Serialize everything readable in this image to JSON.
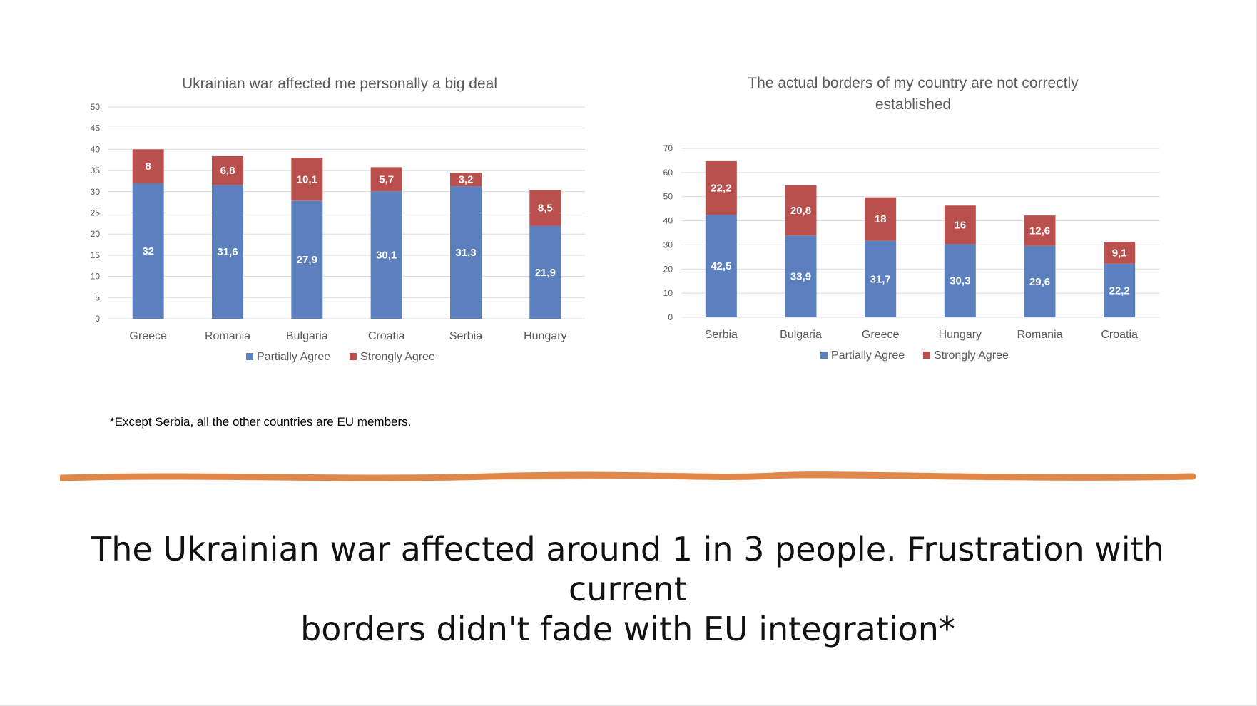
{
  "colors": {
    "partially": "#5b80bd",
    "strongly": "#b9504d",
    "divider": "#e0884a"
  },
  "chart_data": [
    {
      "type": "bar",
      "stacked": true,
      "title": "Ukrainian war affected me personally a big deal",
      "categories": [
        "Greece",
        "Romania",
        "Bulgaria",
        "Croatia",
        "Serbia",
        "Hungary"
      ],
      "series": [
        {
          "name": "Partially Agree",
          "values": [
            "32",
            "31,6",
            "27,9",
            "30,1",
            "31,3",
            "21,9"
          ]
        },
        {
          "name": "Strongly Agree",
          "values": [
            "8",
            "6,8",
            "10,1",
            "5,7",
            "3,2",
            "8,5"
          ]
        }
      ],
      "ylim": [
        0,
        50
      ],
      "yticks": [
        "0",
        "5",
        "10",
        "15",
        "20",
        "25",
        "30",
        "35",
        "40",
        "45",
        "50"
      ],
      "grid": true,
      "legend": "bottom"
    },
    {
      "type": "bar",
      "stacked": true,
      "title": "The actual borders of my country are not correctly established",
      "title_lines": [
        "The actual borders of my country are not correctly",
        "established"
      ],
      "categories": [
        "Serbia",
        "Bulgaria",
        "Greece",
        "Hungary",
        "Romania",
        "Croatia"
      ],
      "series": [
        {
          "name": "Partially Agree",
          "values": [
            "42,5",
            "33,9",
            "31,7",
            "30,3",
            "29,6",
            "22,2"
          ]
        },
        {
          "name": "Strongly Agree",
          "values": [
            "22,2",
            "20,8",
            "18",
            "16",
            "12,6",
            "9,1"
          ]
        }
      ],
      "ylim": [
        0,
        70
      ],
      "yticks": [
        "0",
        "10",
        "20",
        "30",
        "40",
        "50",
        "60",
        "70"
      ],
      "grid": true,
      "legend": "bottom"
    }
  ],
  "footnote": "*Except Serbia, all the other countries are EU members.",
  "headline": {
    "line1": "The Ukrainian war affected around 1 in 3 people. Frustration with current",
    "line2": "borders didn't fade with EU integration*"
  }
}
